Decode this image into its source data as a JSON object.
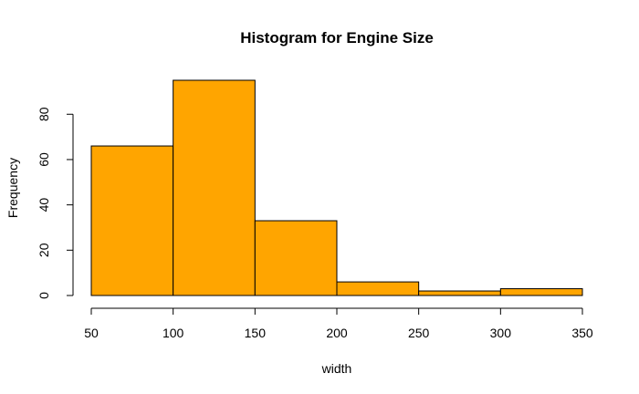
{
  "chart_data": {
    "type": "bar",
    "title": "Histogram for Engine Size",
    "xlabel": "width",
    "ylabel": "Frequency",
    "bar_color": "#FFA500",
    "bins": [
      {
        "start": 50,
        "end": 100,
        "value": 66
      },
      {
        "start": 100,
        "end": 150,
        "value": 95
      },
      {
        "start": 150,
        "end": 200,
        "value": 33
      },
      {
        "start": 200,
        "end": 250,
        "value": 6
      },
      {
        "start": 250,
        "end": 300,
        "value": 2
      },
      {
        "start": 300,
        "end": 350,
        "value": 3
      }
    ],
    "x_ticks": [
      50,
      100,
      150,
      200,
      250,
      300,
      350
    ],
    "y_ticks": [
      0,
      20,
      40,
      60,
      80
    ],
    "xlim": [
      50,
      350
    ],
    "ylim": [
      0,
      95
    ],
    "grid": false
  }
}
